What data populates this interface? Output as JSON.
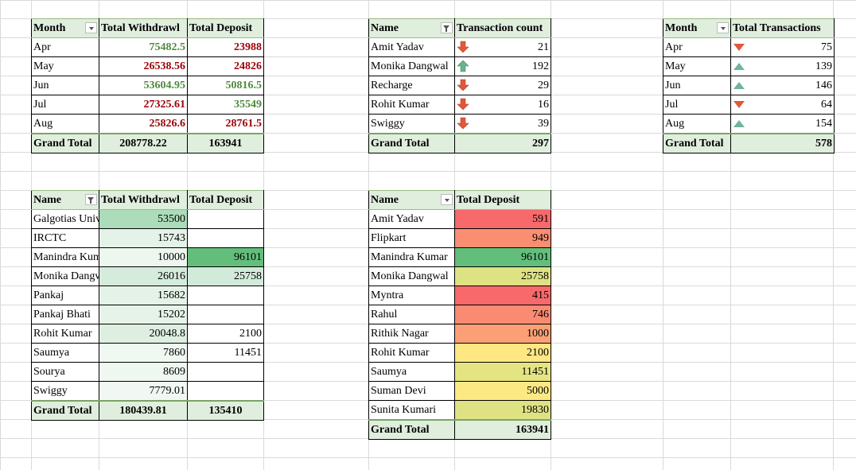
{
  "colors": {
    "header_fill": "#dfeedd",
    "green_text": "#4e8a3d",
    "red_text": "#9c0006"
  },
  "pivot1": {
    "headers": [
      "Month",
      "Total Withdrawl",
      "Total Deposit"
    ],
    "rows": [
      {
        "month": "Apr",
        "withdrawl": "75482.5",
        "deposit": "23988",
        "w_color": "green",
        "d_color": "red"
      },
      {
        "month": "May",
        "withdrawl": "26538.56",
        "deposit": "24826",
        "w_color": "red",
        "d_color": "red"
      },
      {
        "month": "Jun",
        "withdrawl": "53604.95",
        "deposit": "50816.5",
        "w_color": "green",
        "d_color": "green"
      },
      {
        "month": "Jul",
        "withdrawl": "27325.61",
        "deposit": "35549",
        "w_color": "red",
        "d_color": "green"
      },
      {
        "month": "Aug",
        "withdrawl": "25826.6",
        "deposit": "28761.5",
        "w_color": "red",
        "d_color": "red"
      }
    ],
    "total": {
      "label": "Grand Total",
      "withdrawl": "208778.22",
      "deposit": "163941"
    }
  },
  "pivot2": {
    "headers": [
      "Name",
      "Transaction count"
    ],
    "rows": [
      {
        "name": "Amit Yadav",
        "count": "21",
        "icon": "red-down-arrow-icon"
      },
      {
        "name": "Monika Dangwal",
        "count": "192",
        "icon": "green-up-arrow-icon"
      },
      {
        "name": "Recharge",
        "count": "29",
        "icon": "red-down-arrow-icon"
      },
      {
        "name": "Rohit Kumar",
        "count": "16",
        "icon": "red-down-arrow-icon"
      },
      {
        "name": "Swiggy",
        "count": "39",
        "icon": "red-down-arrow-icon"
      }
    ],
    "total": {
      "label": "Grand Total",
      "count": "297"
    }
  },
  "pivot3": {
    "headers": [
      "Month",
      "Total Transactions"
    ],
    "rows": [
      {
        "month": "Apr",
        "count": "75",
        "icon": "red-down-triangle-icon"
      },
      {
        "month": "May",
        "count": "139",
        "icon": "green-up-triangle-icon"
      },
      {
        "month": "Jun",
        "count": "146",
        "icon": "green-up-triangle-icon"
      },
      {
        "month": "Jul",
        "count": "64",
        "icon": "red-down-triangle-icon"
      },
      {
        "month": "Aug",
        "count": "154",
        "icon": "green-up-triangle-icon"
      }
    ],
    "total": {
      "label": "Grand Total",
      "count": "578"
    }
  },
  "pivot4": {
    "headers": [
      "Name",
      "Total Withdrawl",
      "Total Deposit"
    ],
    "rows": [
      {
        "name": "Galgotias University",
        "withdrawl": "53500",
        "deposit": "",
        "w_fill": "#acdcb9",
        "d_fill": "#ffffff"
      },
      {
        "name": "IRCTC",
        "withdrawl": "15743",
        "deposit": "",
        "w_fill": "#e4f2e7",
        "d_fill": "#ffffff"
      },
      {
        "name": "Manindra Kumar",
        "withdrawl": "10000",
        "deposit": "96101",
        "w_fill": "#edf6ef",
        "d_fill": "#63be7b"
      },
      {
        "name": "Monika Dangwal",
        "withdrawl": "26016",
        "deposit": "25758",
        "w_fill": "#d5ebdb",
        "d_fill": "#d2eada"
      },
      {
        "name": "Pankaj",
        "withdrawl": "15682",
        "deposit": "",
        "w_fill": "#e4f2e7",
        "d_fill": "#ffffff"
      },
      {
        "name": "Pankaj Bhati",
        "withdrawl": "15202",
        "deposit": "",
        "w_fill": "#e5f3e8",
        "d_fill": "#ffffff"
      },
      {
        "name": "Rohit Kumar",
        "withdrawl": "20048.8",
        "deposit": "2100",
        "w_fill": "#deefe2",
        "d_fill": "#ffffff"
      },
      {
        "name": "Saumya",
        "withdrawl": "7860",
        "deposit": "11451",
        "w_fill": "#f0f8f2",
        "d_fill": "#ffffff"
      },
      {
        "name": "Sourya",
        "withdrawl": "8609",
        "deposit": "",
        "w_fill": "#eff7f1",
        "d_fill": "#ffffff"
      },
      {
        "name": "Swiggy",
        "withdrawl": "7779.01",
        "deposit": "",
        "w_fill": "#f1f8f3",
        "d_fill": "#ffffff"
      }
    ],
    "total": {
      "label": "Grand Total",
      "withdrawl": "180439.81",
      "deposit": "135410"
    }
  },
  "pivot5": {
    "headers": [
      "Name",
      "Total Deposit"
    ],
    "rows": [
      {
        "name": "Amit Yadav",
        "deposit": "591",
        "fill": "#f8696b"
      },
      {
        "name": "Flipkart",
        "deposit": "949",
        "fill": "#fa8e72"
      },
      {
        "name": "Manindra Kumar",
        "deposit": "96101",
        "fill": "#63be7b"
      },
      {
        "name": "Monika Dangwal",
        "deposit": "25758",
        "fill": "#dde283"
      },
      {
        "name": "Myntra",
        "deposit": "415",
        "fill": "#f8696b"
      },
      {
        "name": "Rahul",
        "deposit": "746",
        "fill": "#f98b72"
      },
      {
        "name": "Rithik Nagar",
        "deposit": "1000",
        "fill": "#fba076"
      },
      {
        "name": "Rohit Kumar",
        "deposit": "2100",
        "fill": "#ffe784"
      },
      {
        "name": "Saumya",
        "deposit": "11451",
        "fill": "#e5e483"
      },
      {
        "name": "Suman Devi",
        "deposit": "5000",
        "fill": "#fde983"
      },
      {
        "name": "Sunita Kumari",
        "deposit": "19830",
        "fill": "#dfe283"
      }
    ],
    "total": {
      "label": "Grand Total",
      "deposit": "163941"
    }
  }
}
